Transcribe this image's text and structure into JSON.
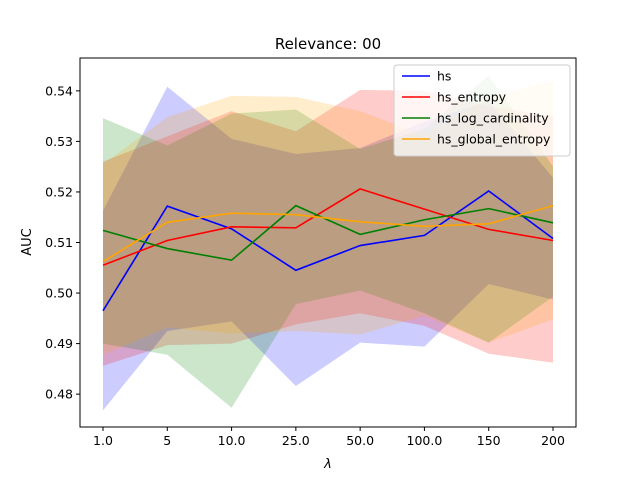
{
  "chart_data": {
    "type": "line",
    "title": "Relevance: 00",
    "xlabel": "λ",
    "ylabel": "AUC",
    "categories": [
      "1.0",
      "5",
      "10.0",
      "25.0",
      "50.0",
      "100.0",
      "150",
      "200"
    ],
    "ylim": [
      0.4735,
      0.5465
    ],
    "yticks": [
      "0.48",
      "0.49",
      "0.50",
      "0.51",
      "0.52",
      "0.53",
      "0.54"
    ],
    "legend_position": "top-right",
    "grid": false,
    "series": [
      {
        "name": "hs",
        "color": "#0000ff",
        "values": [
          0.4965,
          0.5172,
          0.5127,
          0.5045,
          0.5094,
          0.5114,
          0.5202,
          0.5108
        ],
        "upper": [
          0.5163,
          0.5408,
          0.5305,
          0.5275,
          0.5287,
          0.5339,
          0.538,
          0.5228
        ],
        "lower": [
          0.4768,
          0.4925,
          0.4944,
          0.4816,
          0.4902,
          0.4894,
          0.5018,
          0.4987
        ]
      },
      {
        "name": "hs_entropy",
        "color": "#ff0000",
        "values": [
          0.5055,
          0.5104,
          0.5131,
          0.5129,
          0.5206,
          0.5166,
          0.5126,
          0.5104
        ],
        "upper": [
          0.526,
          0.531,
          0.536,
          0.532,
          0.5402,
          0.54,
          0.537,
          0.535
        ],
        "lower": [
          0.4856,
          0.4897,
          0.49,
          0.4938,
          0.496,
          0.4935,
          0.488,
          0.4862
        ]
      },
      {
        "name": "hs_log_cardinality",
        "color": "#008000",
        "values": [
          0.5124,
          0.5088,
          0.5065,
          0.5173,
          0.5116,
          0.5145,
          0.5167,
          0.5139
        ],
        "upper": [
          0.5346,
          0.5292,
          0.5355,
          0.5363,
          0.5285,
          0.5325,
          0.543,
          0.525
        ],
        "lower": [
          0.49,
          0.4878,
          0.4773,
          0.4978,
          0.5005,
          0.496,
          0.4902,
          0.4993
        ]
      },
      {
        "name": "hs_global_entropy",
        "color": "#ffa500",
        "values": [
          0.5062,
          0.514,
          0.5158,
          0.5155,
          0.5141,
          0.5132,
          0.5137,
          0.5173
        ],
        "upper": [
          0.5255,
          0.5348,
          0.539,
          0.5388,
          0.536,
          0.5312,
          0.5388,
          0.542
        ],
        "lower": [
          0.4878,
          0.4932,
          0.492,
          0.4925,
          0.4918,
          0.4955,
          0.4902,
          0.4948
        ]
      }
    ]
  }
}
